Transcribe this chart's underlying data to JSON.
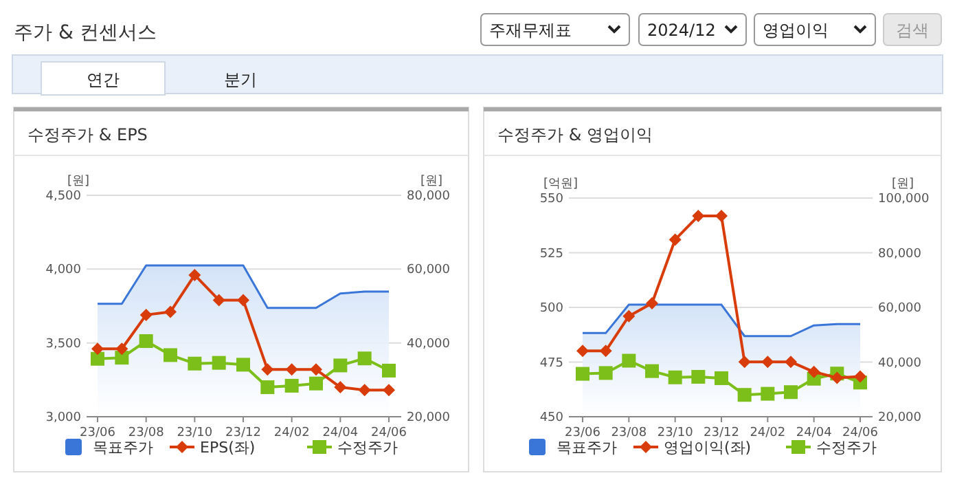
{
  "chart_data": [
    {
      "type": "other",
      "title": "주가 & 컨센서스",
      "annotations": [
        "주재무제표",
        "2024/12",
        "영업이익",
        "검색",
        "연간",
        "분기"
      ]
    },
    {
      "type": "line",
      "title": "수정주가 & EPS",
      "ylabel": "[원]",
      "y2label": "[원]",
      "categories": [
        "23/06",
        null,
        "23/08",
        null,
        "23/10",
        null,
        "23/12",
        null,
        "24/02",
        null,
        "24/04",
        null,
        "24/06"
      ],
      "ylim": [
        3000,
        4500
      ],
      "yticks": [
        {
          "value": 3000,
          "label": "3,000"
        },
        {
          "value": 3500,
          "label": "3,500"
        },
        {
          "value": 4000,
          "label": "4,000"
        },
        {
          "value": 4500,
          "label": "4,500"
        }
      ],
      "y2lim": [
        20000,
        80000
      ],
      "y2ticks": [
        {
          "value": 20000,
          "label": "20,000"
        },
        {
          "value": 40000,
          "label": "40,000"
        },
        {
          "value": 60000,
          "label": "60,000"
        },
        {
          "value": 80000,
          "label": "80,000"
        }
      ],
      "grid": "y",
      "legend": "bottom",
      "series": [
        {
          "name": "목표주가",
          "type": "area",
          "axis": "y2",
          "color": "#3a75d8",
          "marker": "none",
          "values": [
            50600,
            50600,
            61000,
            61000,
            61000,
            61000,
            61000,
            49500,
            49500,
            49500,
            53400,
            53900,
            53900
          ]
        },
        {
          "name": "EPS(좌)",
          "type": "line",
          "color": "#d83c0a",
          "marker": "diamond",
          "values": [
            3460,
            3460,
            3690,
            3710,
            3960,
            3790,
            3790,
            3320,
            3320,
            3320,
            3200,
            3180,
            3180
          ]
        },
        {
          "name": "수정주가",
          "type": "line",
          "axis": "y2",
          "color": "#7cbf1a",
          "marker": "square",
          "values": [
            35700,
            36000,
            40500,
            36700,
            34400,
            34600,
            34100,
            28000,
            28400,
            29000,
            33900,
            35800,
            32500
          ]
        }
      ]
    },
    {
      "type": "line",
      "title": "수정주가 & 영업이익",
      "ylabel": "[억원]",
      "y2label": "[원]",
      "categories": [
        "23/06",
        null,
        "23/08",
        null,
        "23/10",
        null,
        "23/12",
        null,
        "24/02",
        null,
        "24/04",
        null,
        "24/06"
      ],
      "ylim": [
        450,
        550
      ],
      "yticks": [
        450,
        475,
        500,
        525,
        550
      ],
      "y2lim": [
        20000,
        100000
      ],
      "y2ticks": [
        {
          "value": 20000,
          "label": "20,000"
        },
        {
          "value": 40000,
          "label": "40,000"
        },
        {
          "value": 60000,
          "label": "60,000"
        },
        {
          "value": 80000,
          "label": "80,000"
        },
        {
          "value": 100000,
          "label": "100,000"
        }
      ],
      "grid": "y",
      "legend": "bottom",
      "series": [
        {
          "name": "목표주가",
          "type": "area",
          "axis": "y2",
          "color": "#3a75d8",
          "marker": "none",
          "values": [
            50600,
            50600,
            61000,
            61000,
            61000,
            61000,
            61000,
            49500,
            49500,
            49500,
            53400,
            53900,
            53900
          ]
        },
        {
          "name": "영업이익(좌)",
          "type": "line",
          "color": "#d83c0a",
          "marker": "diamond",
          "values": [
            480.1,
            480.1,
            496,
            501.9,
            531,
            541.8,
            541.8,
            475.1,
            475.1,
            475.1,
            470.5,
            467.8,
            468.4
          ]
        },
        {
          "name": "수정주가",
          "type": "line",
          "axis": "y2",
          "color": "#7cbf1a",
          "marker": "square",
          "values": [
            35700,
            36000,
            40500,
            36700,
            34400,
            34600,
            34100,
            28000,
            28400,
            29000,
            33900,
            35800,
            32500
          ]
        }
      ]
    }
  ]
}
